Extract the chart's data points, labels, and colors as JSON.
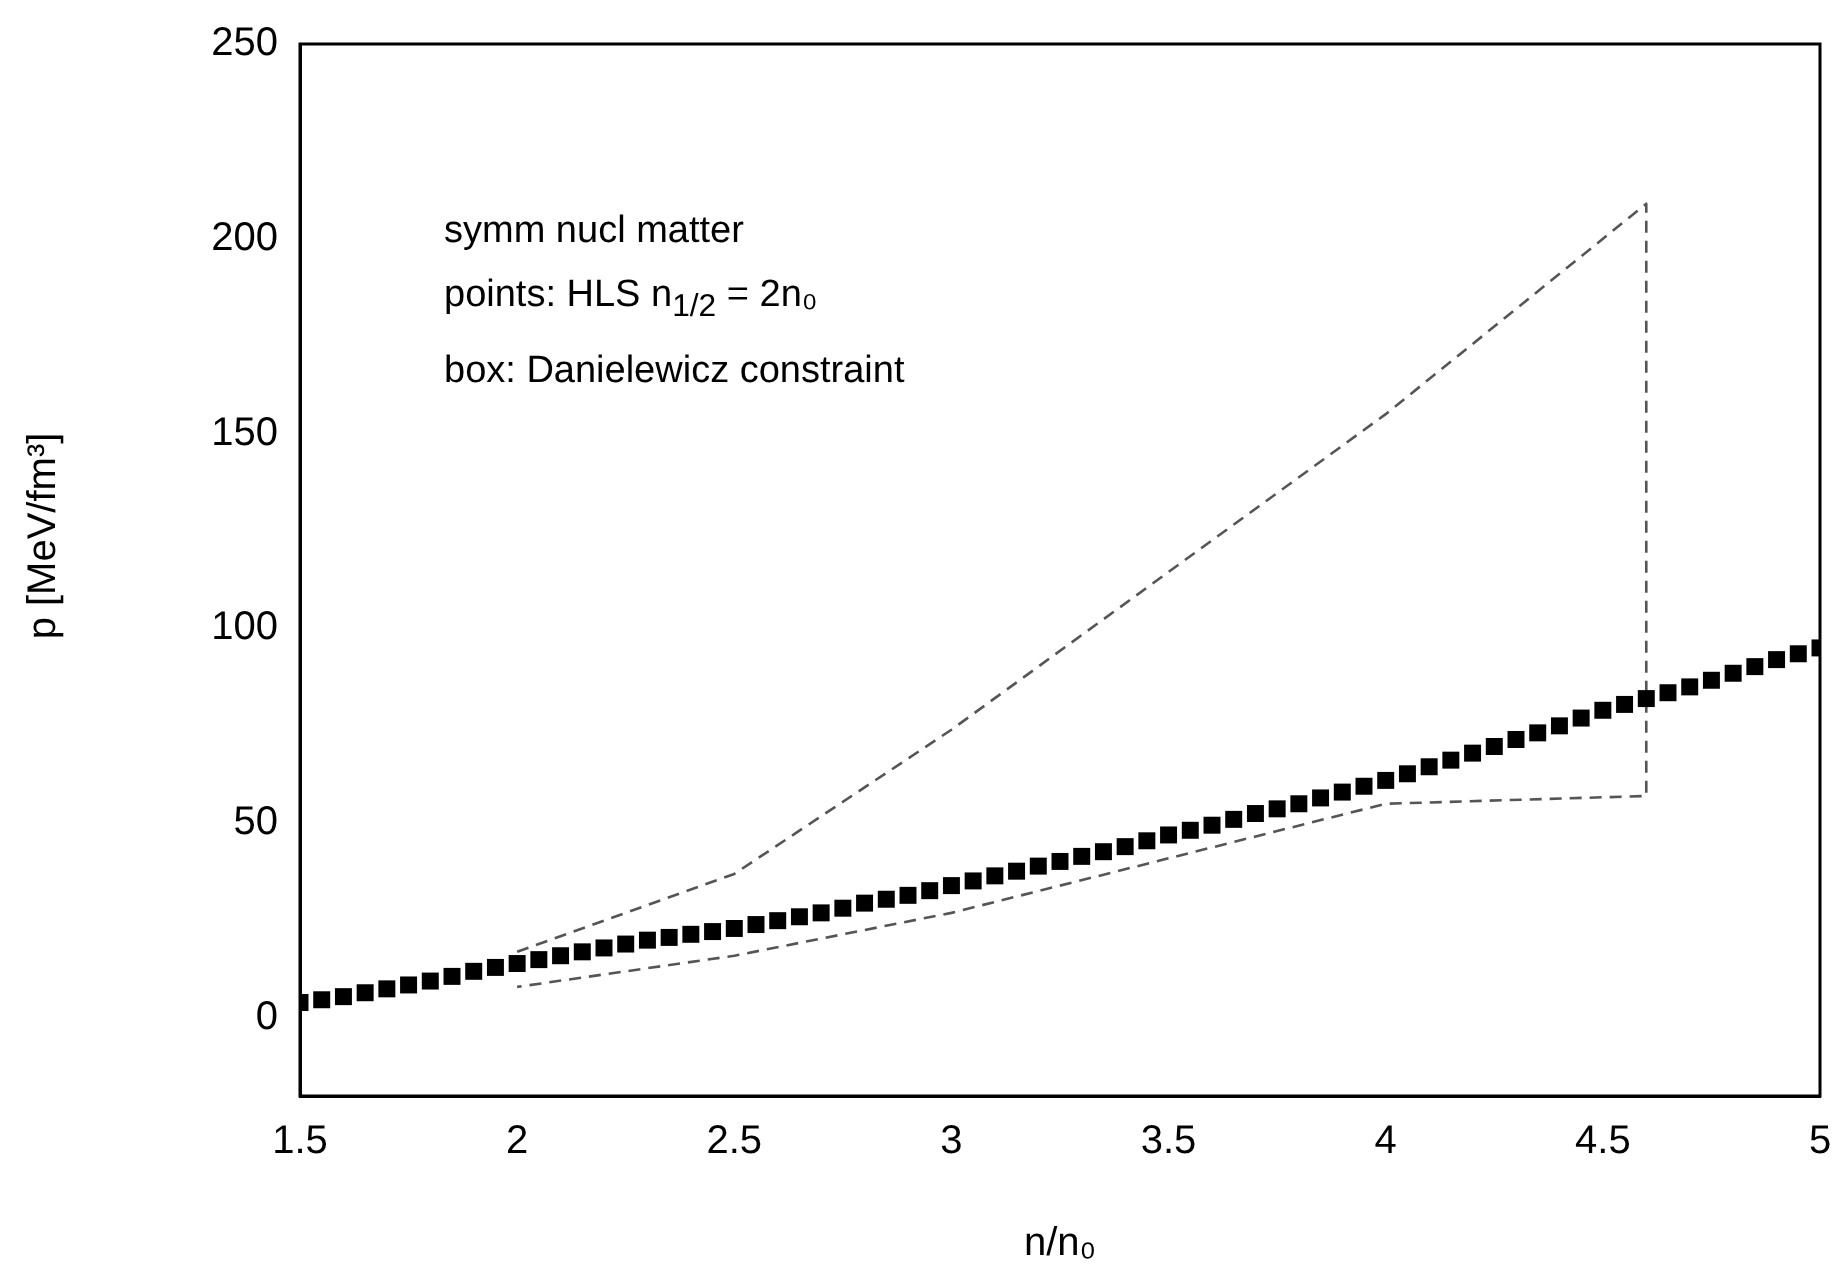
{
  "chart_data": {
    "type": "scatter",
    "xlabel": "n/n₀",
    "ylabel": "p  [MeV/fm³]",
    "xlim": [
      1.5,
      5
    ],
    "xticks": [
      1.5,
      2,
      2.5,
      3,
      3.5,
      4,
      4.5,
      5
    ],
    "ylim": [
      -20,
      250
    ],
    "yticks": [
      0,
      50,
      100,
      150,
      200,
      250
    ],
    "grid": false,
    "legend": false,
    "annotations": [
      "symm nucl matter",
      "points: HLS n$_{1/2}$ = 2n₀",
      "box: Danielewicz constraint"
    ],
    "series": [
      {
        "type": "scatter",
        "color": "#000000",
        "marker": "square",
        "x": [
          1.5,
          1.55,
          1.6,
          1.65,
          1.7,
          1.75,
          1.8,
          1.85,
          1.9,
          1.95,
          2,
          2.05,
          2.1,
          2.15,
          2.2,
          2.25,
          2.3,
          2.35,
          2.4,
          2.45,
          2.5,
          2.55,
          2.6,
          2.65,
          2.7,
          2.75,
          2.8,
          2.85,
          2.9,
          2.95,
          3,
          3.05,
          3.1,
          3.15,
          3.2,
          3.25,
          3.3,
          3.35,
          3.4,
          3.45,
          3.5,
          3.55,
          3.6,
          3.65,
          3.7,
          3.75,
          3.8,
          3.85,
          3.9,
          3.95,
          4,
          4.05,
          4.1,
          4.15,
          4.2,
          4.25,
          4.3,
          4.35,
          4.4,
          4.45,
          4.5,
          4.55,
          4.6,
          4.65,
          4.7,
          4.75,
          4.8,
          4.85,
          4.9,
          4.95,
          5
        ],
        "values": [
          4,
          4.7,
          5.5,
          6.5,
          7.5,
          8.5,
          9.5,
          10.7,
          12,
          13,
          14,
          15,
          16,
          17,
          18,
          19,
          20,
          20.7,
          21.5,
          22.2,
          23,
          24,
          25,
          26,
          27,
          28.2,
          29.5,
          30.5,
          31.5,
          32.7,
          34,
          35.2,
          36.5,
          37.7,
          39,
          40.2,
          41.5,
          42.7,
          44,
          45.5,
          47,
          48.2,
          49.5,
          51,
          52.5,
          53.7,
          55,
          56.5,
          58,
          59.5,
          61,
          62.7,
          64.5,
          66.2,
          68,
          69.7,
          71.5,
          73.2,
          75,
          77,
          79,
          80.5,
          82,
          83.5,
          85,
          86.7,
          88.5,
          90.2,
          92,
          93.5,
          95
        ]
      },
      {
        "type": "line",
        "color": "#555555",
        "marker": "none",
        "line_style": "dashed",
        "x": [
          2,
          2.5,
          3,
          4,
          4.6,
          4.6,
          4,
          3,
          2.5,
          2
        ],
        "values": [
          17,
          37,
          74,
          155,
          209,
          57,
          55,
          27,
          16,
          8
        ]
      }
    ]
  }
}
